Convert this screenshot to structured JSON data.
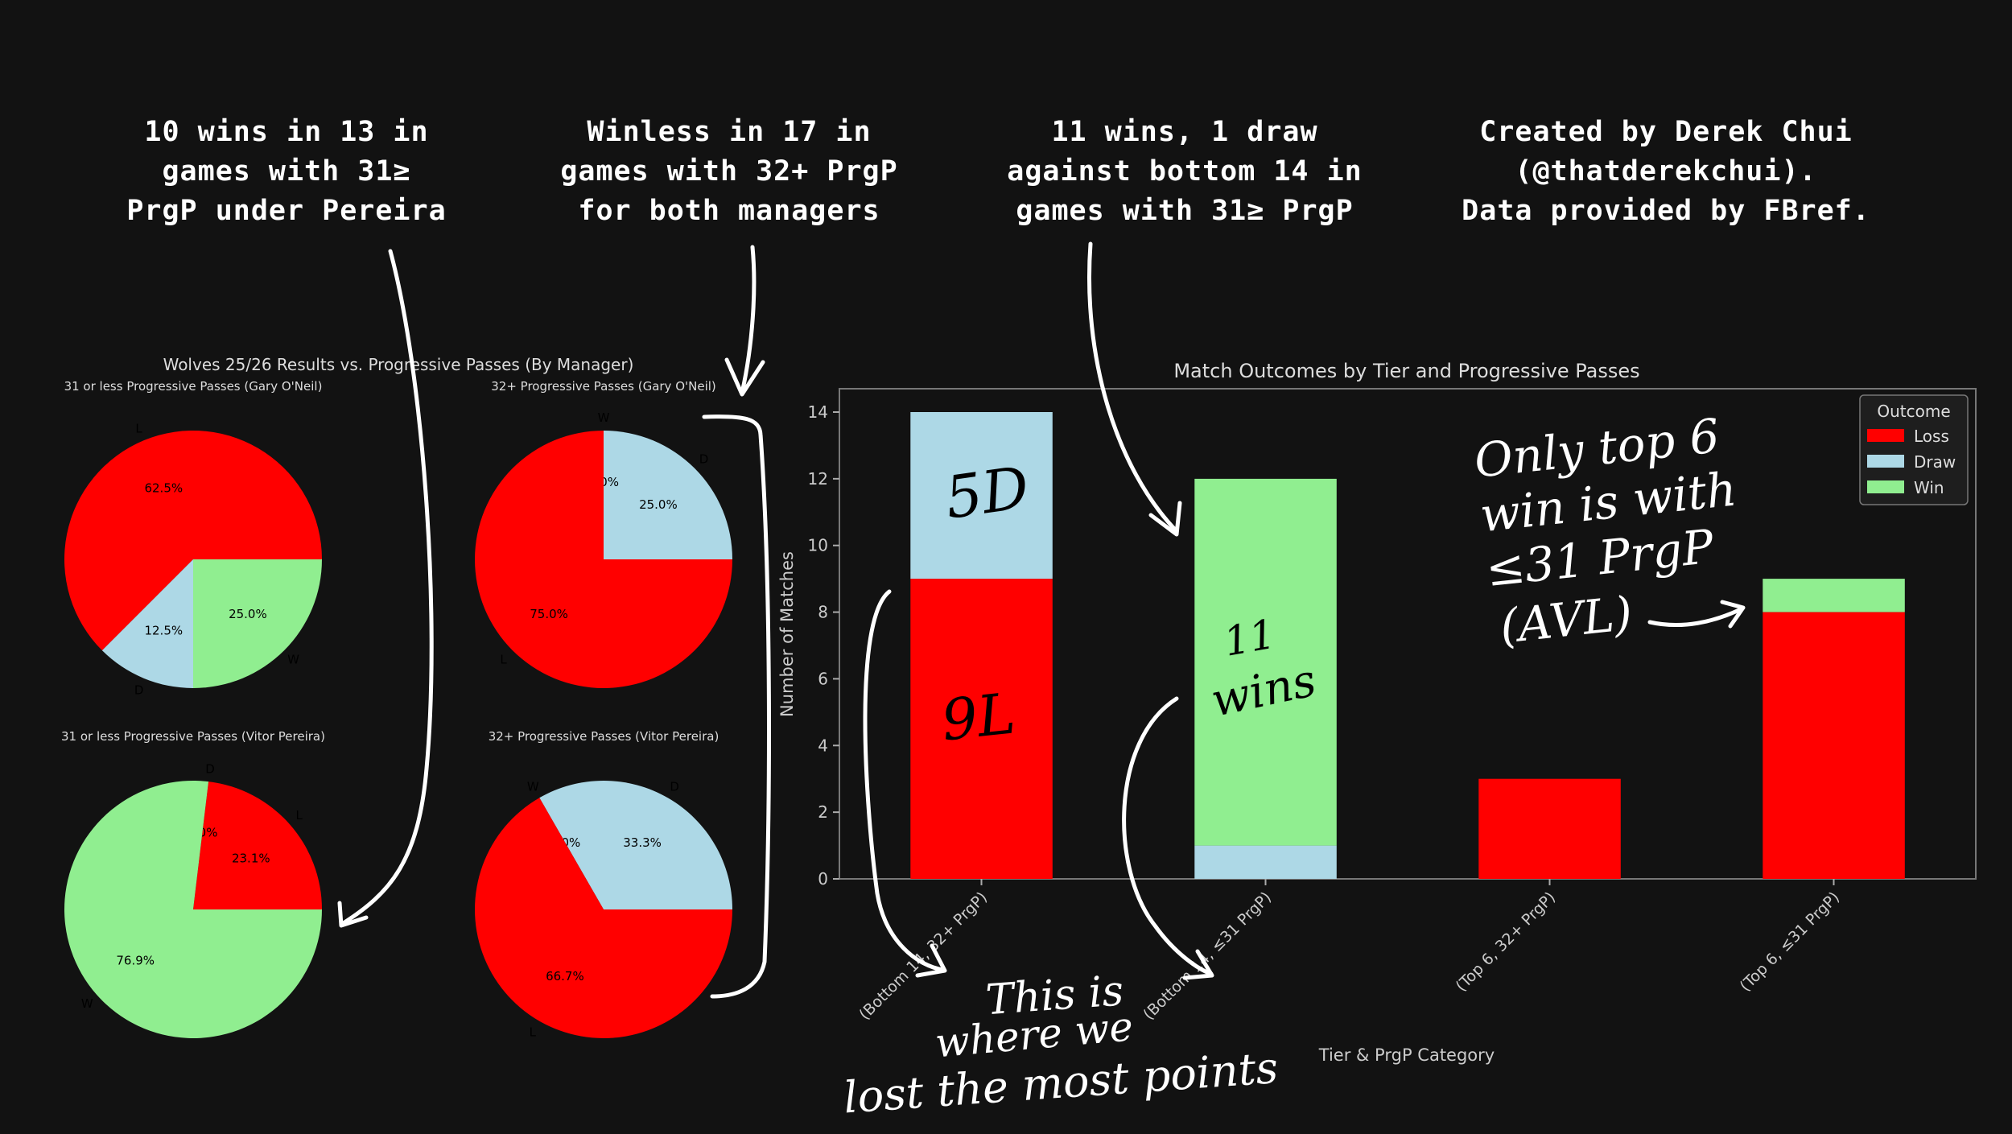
{
  "headlines": {
    "h1": "10 wins in 13 in\ngames with 31≥\nPrgP under Pereira",
    "h2": "Winless in 17 in\ngames with 32+ PrgP\nfor both managers",
    "h3": "11 wins, 1 draw\nagainst bottom 14 in\ngames with 31≥ PrgP",
    "h4": "Created by Derek Chui\n(@thatderekchui).\nData provided by FBref."
  },
  "pies": {
    "title": "Wolves 25/26 Results vs. Progressive Passes (By Manager)",
    "colors": {
      "L": "#ff0000",
      "D": "#add8e6",
      "W": "#90ee90"
    },
    "charts": [
      {
        "title": "31 or less Progressive Passes (Gary O'Neil)",
        "type": "pie",
        "slices": [
          {
            "label": "L",
            "value": 62.5,
            "pct": "62.5%"
          },
          {
            "label": "D",
            "value": 12.5,
            "pct": "12.5%"
          },
          {
            "label": "W",
            "value": 25.0,
            "pct": "25.0%"
          }
        ]
      },
      {
        "title": "32+ Progressive Passes (Gary O'Neil)",
        "type": "pie",
        "slices": [
          {
            "label": "D",
            "value": 25.0,
            "pct": "25.0%"
          },
          {
            "label": "W",
            "value": 0.0,
            "pct": "0.0%"
          },
          {
            "label": "L",
            "value": 75.0,
            "pct": "75.0%"
          }
        ]
      },
      {
        "title": "31 or less Progressive Passes (Vitor Pereira)",
        "type": "pie",
        "slices": [
          {
            "label": "L",
            "value": 23.1,
            "pct": "23.1%"
          },
          {
            "label": "D",
            "value": 0.0,
            "pct": "0.0%"
          },
          {
            "label": "W",
            "value": 76.9,
            "pct": "76.9%"
          }
        ]
      },
      {
        "title": "32+ Progressive Passes (Vitor Pereira)",
        "type": "pie",
        "slices": [
          {
            "label": "D",
            "value": 33.3,
            "pct": "33.3%"
          },
          {
            "label": "W",
            "value": 0.0,
            "pct": "0.0%"
          },
          {
            "label": "L",
            "value": 66.7,
            "pct": "66.7%"
          }
        ]
      }
    ]
  },
  "bars": {
    "title": "Match Outcomes by Tier and Progressive Passes",
    "xlabel": "Tier & PrgP Category",
    "ylabel": "Number of Matches",
    "ylim": [
      0,
      14.7
    ],
    "yticks": [
      0,
      2,
      4,
      6,
      8,
      10,
      12,
      14
    ],
    "legend": {
      "title": "Outcome",
      "position": "top-right",
      "items": [
        {
          "name": "Loss",
          "color": "#ff0000"
        },
        {
          "name": "Draw",
          "color": "#add8e6"
        },
        {
          "name": "Win",
          "color": "#90ee90"
        }
      ]
    }
  },
  "chart_data": {
    "type": "bar",
    "stacked": true,
    "categories": [
      "(Bottom 14, 32+ PrgP)",
      "(Bottom 14, ≤31 PrgP)",
      "(Top 6, 32+ PrgP)",
      "(Top 6, ≤31 PrgP)"
    ],
    "series": [
      {
        "name": "Loss",
        "values": [
          9,
          0,
          3,
          8
        ]
      },
      {
        "name": "Draw",
        "values": [
          5,
          1,
          0,
          0
        ]
      },
      {
        "name": "Win",
        "values": [
          0,
          11,
          0,
          1
        ]
      }
    ],
    "title": "Match Outcomes by Tier and Progressive Passes",
    "xlabel": "Tier & PrgP Category",
    "ylabel": "Number of Matches",
    "ylim": [
      0,
      14.7
    ],
    "grid": false,
    "legend": "top-right"
  },
  "annotations": {
    "five_d": "5D",
    "nine_l": "9L",
    "eleven_line1": "11",
    "eleven_line2": "wins",
    "top6_lines": [
      "Only top 6",
      "win is with",
      "≤31 PrgP",
      "(AVL)"
    ],
    "bottom_lines": [
      "This is",
      "where we",
      "lost the most points"
    ]
  }
}
